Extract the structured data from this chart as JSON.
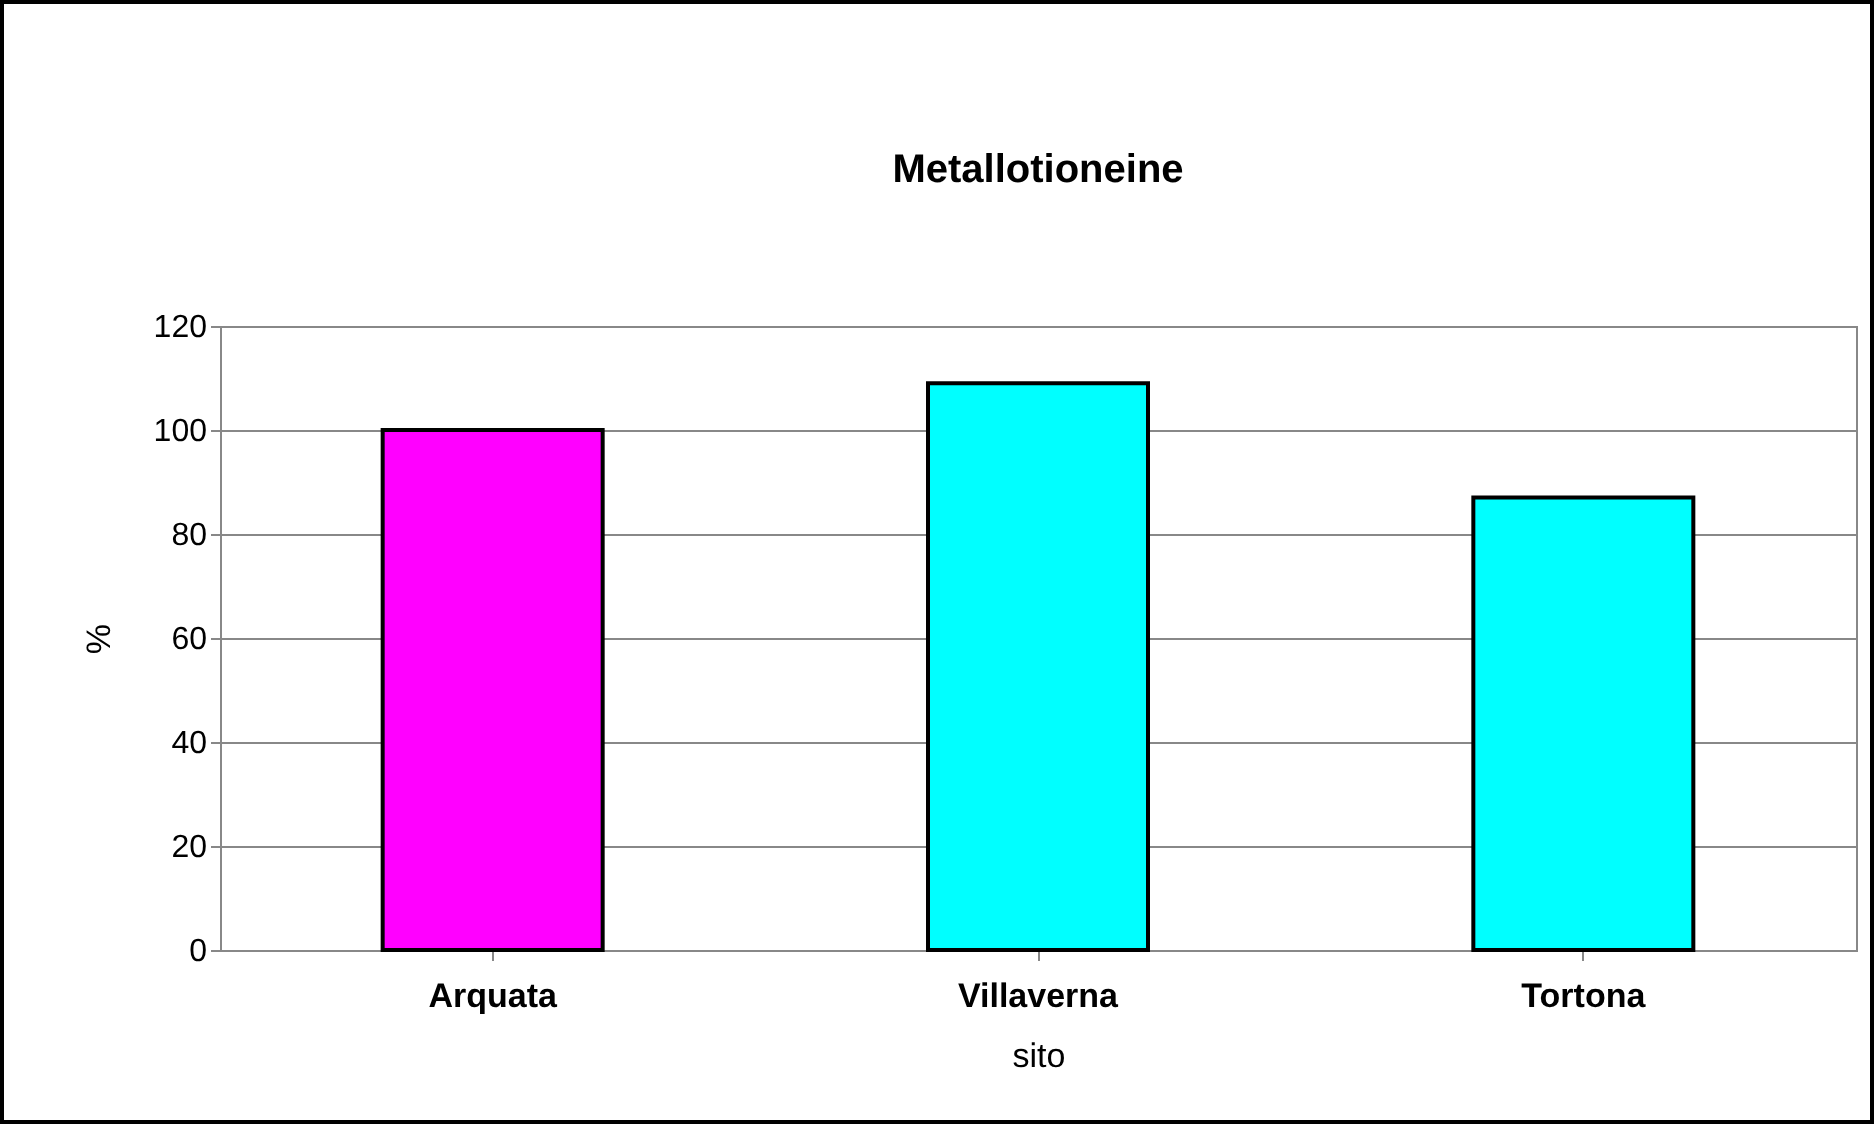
{
  "chart_data": {
    "type": "bar",
    "title": "Metallotioneine",
    "xlabel": "sito",
    "ylabel": "%",
    "categories": [
      "Arquata",
      "Villaverna",
      "Tortona"
    ],
    "values": [
      100,
      109,
      87
    ],
    "colors": [
      "#ff00ff",
      "#00ffff",
      "#00ffff"
    ],
    "ylim": [
      0,
      120
    ],
    "yticks": [
      0,
      20,
      40,
      60,
      80,
      100,
      120
    ],
    "grid": "y"
  }
}
